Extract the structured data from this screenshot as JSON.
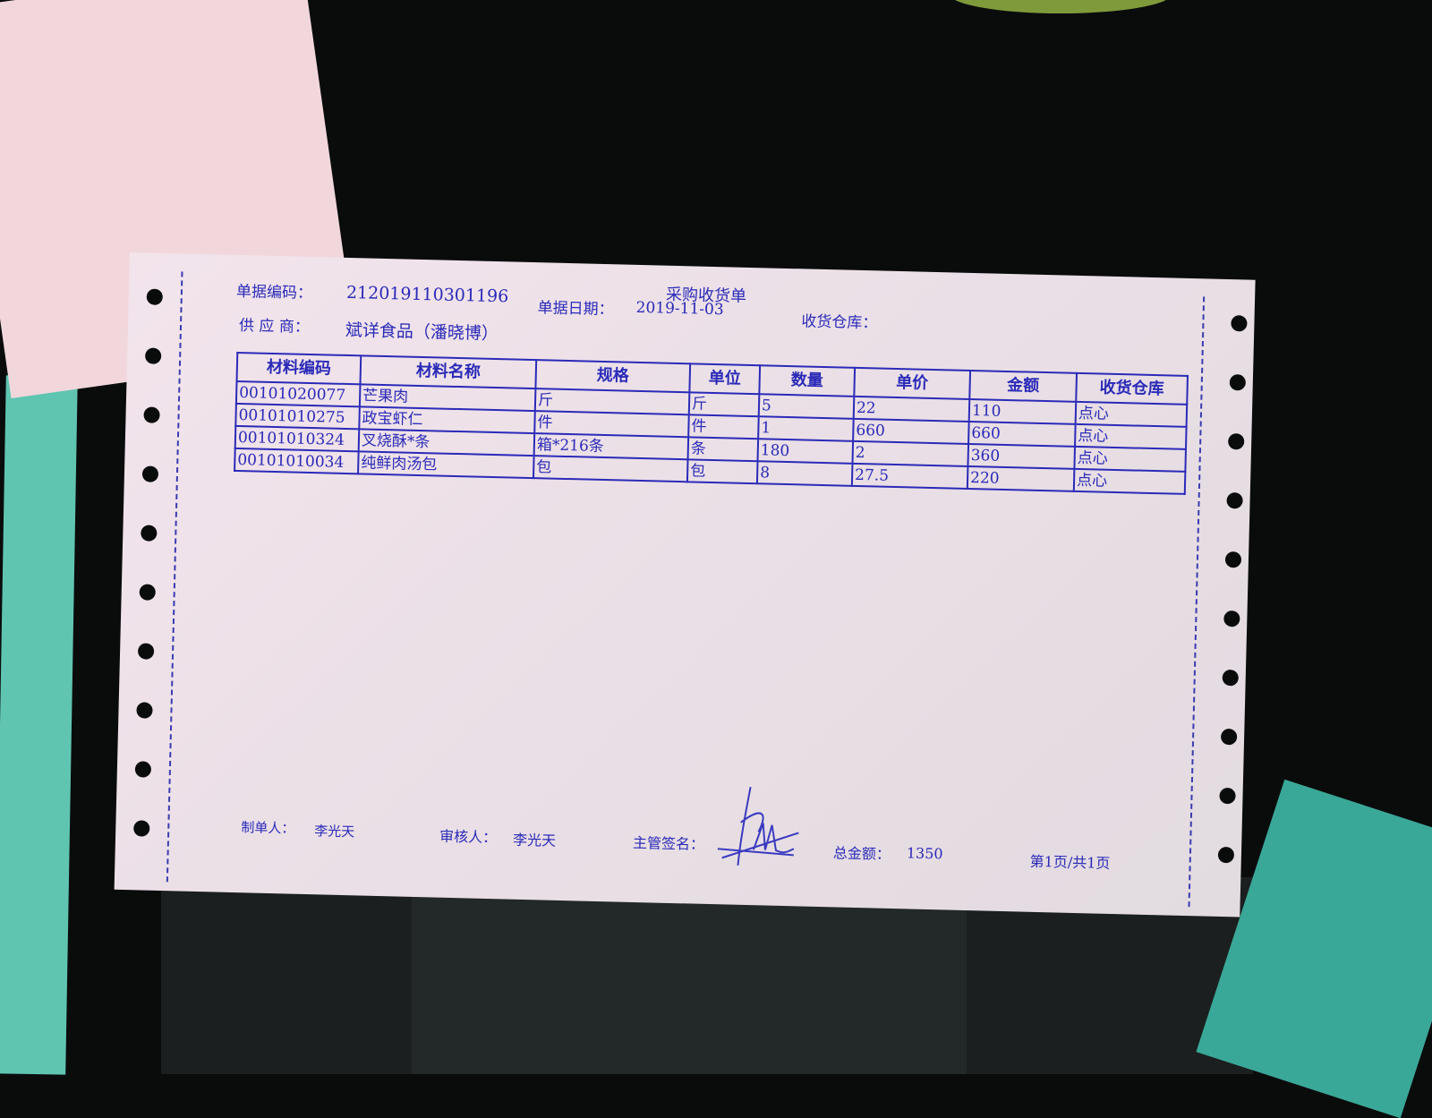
{
  "document": {
    "title": "采购收货单",
    "bill_no_label": "单据编码：",
    "bill_no": "212019110301196",
    "date_label": "单据日期：",
    "date": "2019-11-03",
    "warehouse_label": "收货仓库：",
    "supplier_label": "供 应 商：",
    "supplier": "斌详食品（潘晓博）"
  },
  "table": {
    "headers": [
      "材料编码",
      "材料名称",
      "规格",
      "单位",
      "数量",
      "单价",
      "金额",
      "收货仓库"
    ],
    "rows": [
      [
        "00101020077",
        "芒果肉",
        "斤",
        "斤",
        "5",
        "22",
        "110",
        "点心"
      ],
      [
        "00101010275",
        "政宝虾仁",
        "件",
        "件",
        "1",
        "660",
        "660",
        "点心"
      ],
      [
        "00101010324",
        "叉烧酥*条",
        "箱*216条",
        "条",
        "180",
        "2",
        "360",
        "点心"
      ],
      [
        "00101010034",
        "纯鲜肉汤包",
        "包",
        "包",
        "8",
        "27.5",
        "220",
        "点心"
      ]
    ]
  },
  "footer": {
    "maker_label": "制单人：",
    "maker": "李光天",
    "reviewer_label": "审核人：",
    "reviewer": "李光天",
    "supervisor_label": "主管签名：",
    "total_label": "总金额：",
    "total": "1350",
    "page": "第1页/共1页"
  },
  "colors": {
    "ink": "#2a2ab8",
    "paper": "#ece0e7",
    "background": "#0a0c0c"
  }
}
